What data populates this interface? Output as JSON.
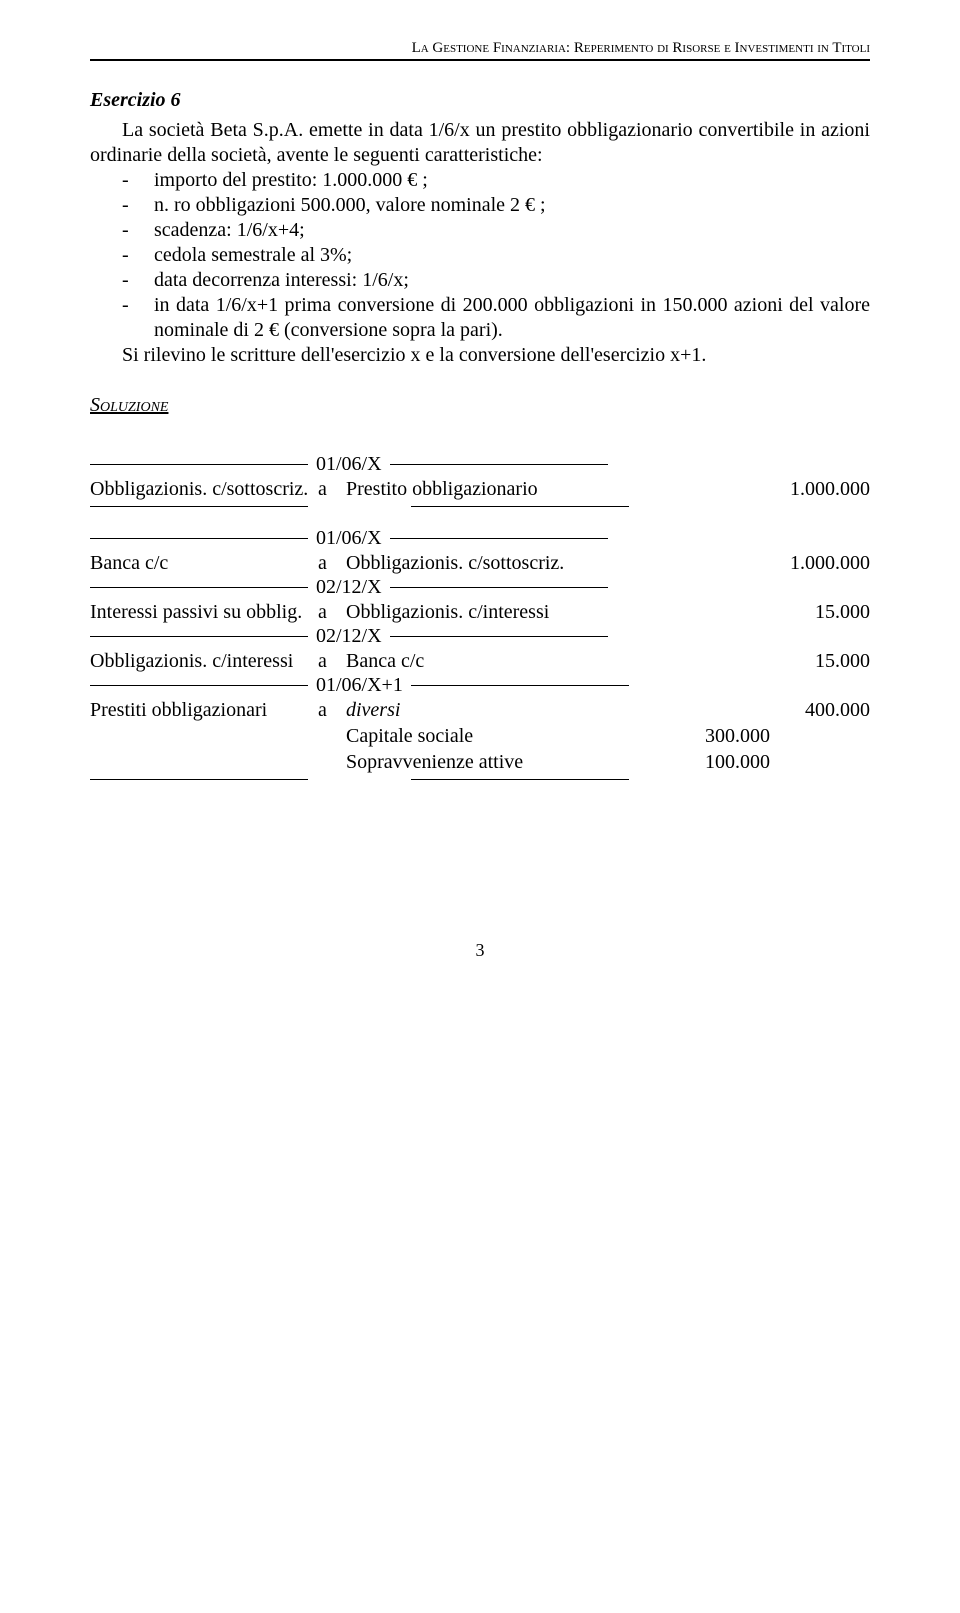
{
  "header": "La Gestione Finanziaria: Reperimento di Risorse e Investimenti in Titoli",
  "exerciseTitle": "Esercizio 6",
  "intro1": "La società Beta S.p.A. emette in data 1/6/x un prestito obbligazionario convertibile in azioni ordinarie della società, avente le seguenti caratteristiche:",
  "bullets": [
    "importo del prestito: 1.000.000 € ;",
    "n. ro obbligazioni 500.000, valore nominale 2 € ;",
    "scadenza: 1/6/x+4;",
    "cedola semestrale al 3%;",
    "data decorrenza interessi: 1/6/x;",
    "in data 1/6/x+1 prima conversione di 200.000 obbligazioni in 150.000 azioni del valore nominale di 2 € (conversione sopra la pari)."
  ],
  "intro2": "Si rilevino le scritture dell'esercizio x e la conversione dell'esercizio x+1.",
  "soluzione": "Soluzione",
  "entries": {
    "block1": {
      "date": "01/06/X",
      "rows": [
        {
          "left": "Obbligazionis. c/sottoscriz.",
          "a": "a",
          "right": "Prestito obbligazionario",
          "amt2": "1.000.000"
        }
      ]
    },
    "block2": [
      {
        "date": "01/06/X"
      },
      {
        "left": "Banca c/c",
        "a": "a",
        "right": "Obbligazionis. c/sottoscriz.",
        "amt2": "1.000.000"
      },
      {
        "date": "02/12/X"
      },
      {
        "left": "Interessi passivi su obblig.",
        "a": "a",
        "right": "Obbligazionis. c/interessi",
        "amt2": "15.000"
      },
      {
        "date": "02/12/X"
      },
      {
        "left": "Obbligazionis. c/interessi",
        "a": "a",
        "right": "Banca c/c",
        "amt2": "15.000"
      },
      {
        "date": "01/06/X+1"
      },
      {
        "left": "Prestiti obbligazionari",
        "a": "a",
        "right": "diversi",
        "italic": true,
        "amt2": "400.000"
      },
      {
        "sub": true,
        "right": "Capitale sociale",
        "amt1": "300.000"
      },
      {
        "sub": true,
        "right": "Sopravvenienze attive",
        "amt1": "100.000"
      },
      {
        "end": true
      }
    ]
  },
  "pagenum": "3"
}
